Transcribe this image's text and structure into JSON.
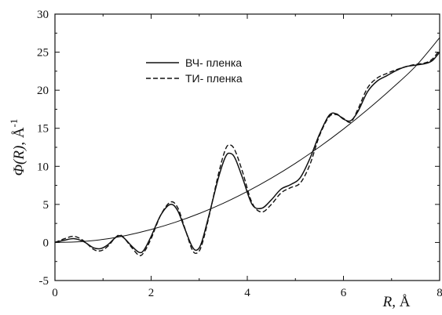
{
  "chart_data": {
    "type": "line",
    "xlabel_symbol": "R",
    "xlabel_unit": "Å",
    "ylabel_func": "Φ(R)",
    "ylabel_unit": "Å",
    "ylabel_exp": "-1",
    "xlim": [
      0,
      8
    ],
    "ylim": [
      -5,
      30
    ],
    "xticks": [
      0,
      2,
      4,
      6,
      8
    ],
    "yticks": [
      -5,
      0,
      5,
      10,
      15,
      20,
      25,
      30
    ],
    "xtick_labels": [
      "0",
      "2",
      "4",
      "6",
      "8"
    ],
    "ytick_labels": [
      "-5",
      "0",
      "5",
      "10",
      "15",
      "20",
      "25",
      "30"
    ],
    "grid": false,
    "legend_position": "upper-left",
    "series": [
      {
        "name": "ВЧ- пленка",
        "style": "solid",
        "x": [
          0,
          0.2,
          0.4,
          0.6,
          0.8,
          0.95,
          1.1,
          1.25,
          1.35,
          1.45,
          1.6,
          1.75,
          1.85,
          2.0,
          2.2,
          2.4,
          2.55,
          2.7,
          2.85,
          2.95,
          3.05,
          3.2,
          3.4,
          3.55,
          3.65,
          3.75,
          3.9,
          4.1,
          4.3,
          4.5,
          4.7,
          4.9,
          5.1,
          5.3,
          5.5,
          5.7,
          5.85,
          6.0,
          6.15,
          6.3,
          6.5,
          6.7,
          6.9,
          7.1,
          7.3,
          7.5,
          7.7,
          7.85,
          8.0
        ],
        "values": [
          0,
          0.3,
          0.5,
          0.1,
          -0.7,
          -0.8,
          -0.3,
          0.6,
          0.9,
          0.5,
          -0.5,
          -1.3,
          -1.0,
          0.8,
          3.6,
          5.0,
          4.2,
          1.8,
          -0.5,
          -1.0,
          0.0,
          3.5,
          8.5,
          11.3,
          11.7,
          11.0,
          8.5,
          5.0,
          4.5,
          5.6,
          7.0,
          7.6,
          8.5,
          11.0,
          14.2,
          16.7,
          16.9,
          16.2,
          16.0,
          17.2,
          19.8,
          21.2,
          21.9,
          22.6,
          23.1,
          23.3,
          23.5,
          23.9,
          25.0
        ]
      },
      {
        "name": "ТИ- пленка",
        "style": "dashed",
        "x": [
          0,
          0.2,
          0.4,
          0.6,
          0.8,
          0.95,
          1.1,
          1.25,
          1.35,
          1.45,
          1.6,
          1.75,
          1.85,
          2.0,
          2.2,
          2.4,
          2.55,
          2.7,
          2.85,
          2.95,
          3.05,
          3.2,
          3.4,
          3.55,
          3.65,
          3.75,
          3.9,
          4.1,
          4.3,
          4.5,
          4.7,
          4.9,
          5.1,
          5.3,
          5.5,
          5.7,
          5.85,
          6.0,
          6.15,
          6.3,
          6.5,
          6.7,
          6.9,
          7.1,
          7.3,
          7.5,
          7.7,
          7.85,
          8.0
        ],
        "values": [
          0,
          0.5,
          0.8,
          0.2,
          -0.9,
          -1.1,
          -0.5,
          0.6,
          1.0,
          0.5,
          -0.7,
          -1.7,
          -1.3,
          0.5,
          3.6,
          5.3,
          4.6,
          1.9,
          -0.9,
          -1.4,
          -0.4,
          3.3,
          9.0,
          12.3,
          12.8,
          12.0,
          9.3,
          5.2,
          4.0,
          5.0,
          6.5,
          7.2,
          7.8,
          10.2,
          14.0,
          16.5,
          16.8,
          16.3,
          15.8,
          17.5,
          20.3,
          21.6,
          22.2,
          22.7,
          23.1,
          23.4,
          23.6,
          24.1,
          25.3
        ]
      },
      {
        "name": "",
        "style": "thin-solid",
        "x": [
          0,
          0.5,
          1,
          1.5,
          2,
          2.5,
          3,
          3.5,
          4,
          4.5,
          5,
          5.5,
          6,
          6.5,
          7,
          7.5,
          8
        ],
        "values": [
          0,
          0.1,
          0.4,
          0.95,
          1.7,
          2.65,
          3.8,
          5.15,
          6.7,
          8.45,
          10.4,
          12.55,
          14.9,
          17.45,
          20.2,
          23.15,
          26.9
        ]
      }
    ]
  }
}
